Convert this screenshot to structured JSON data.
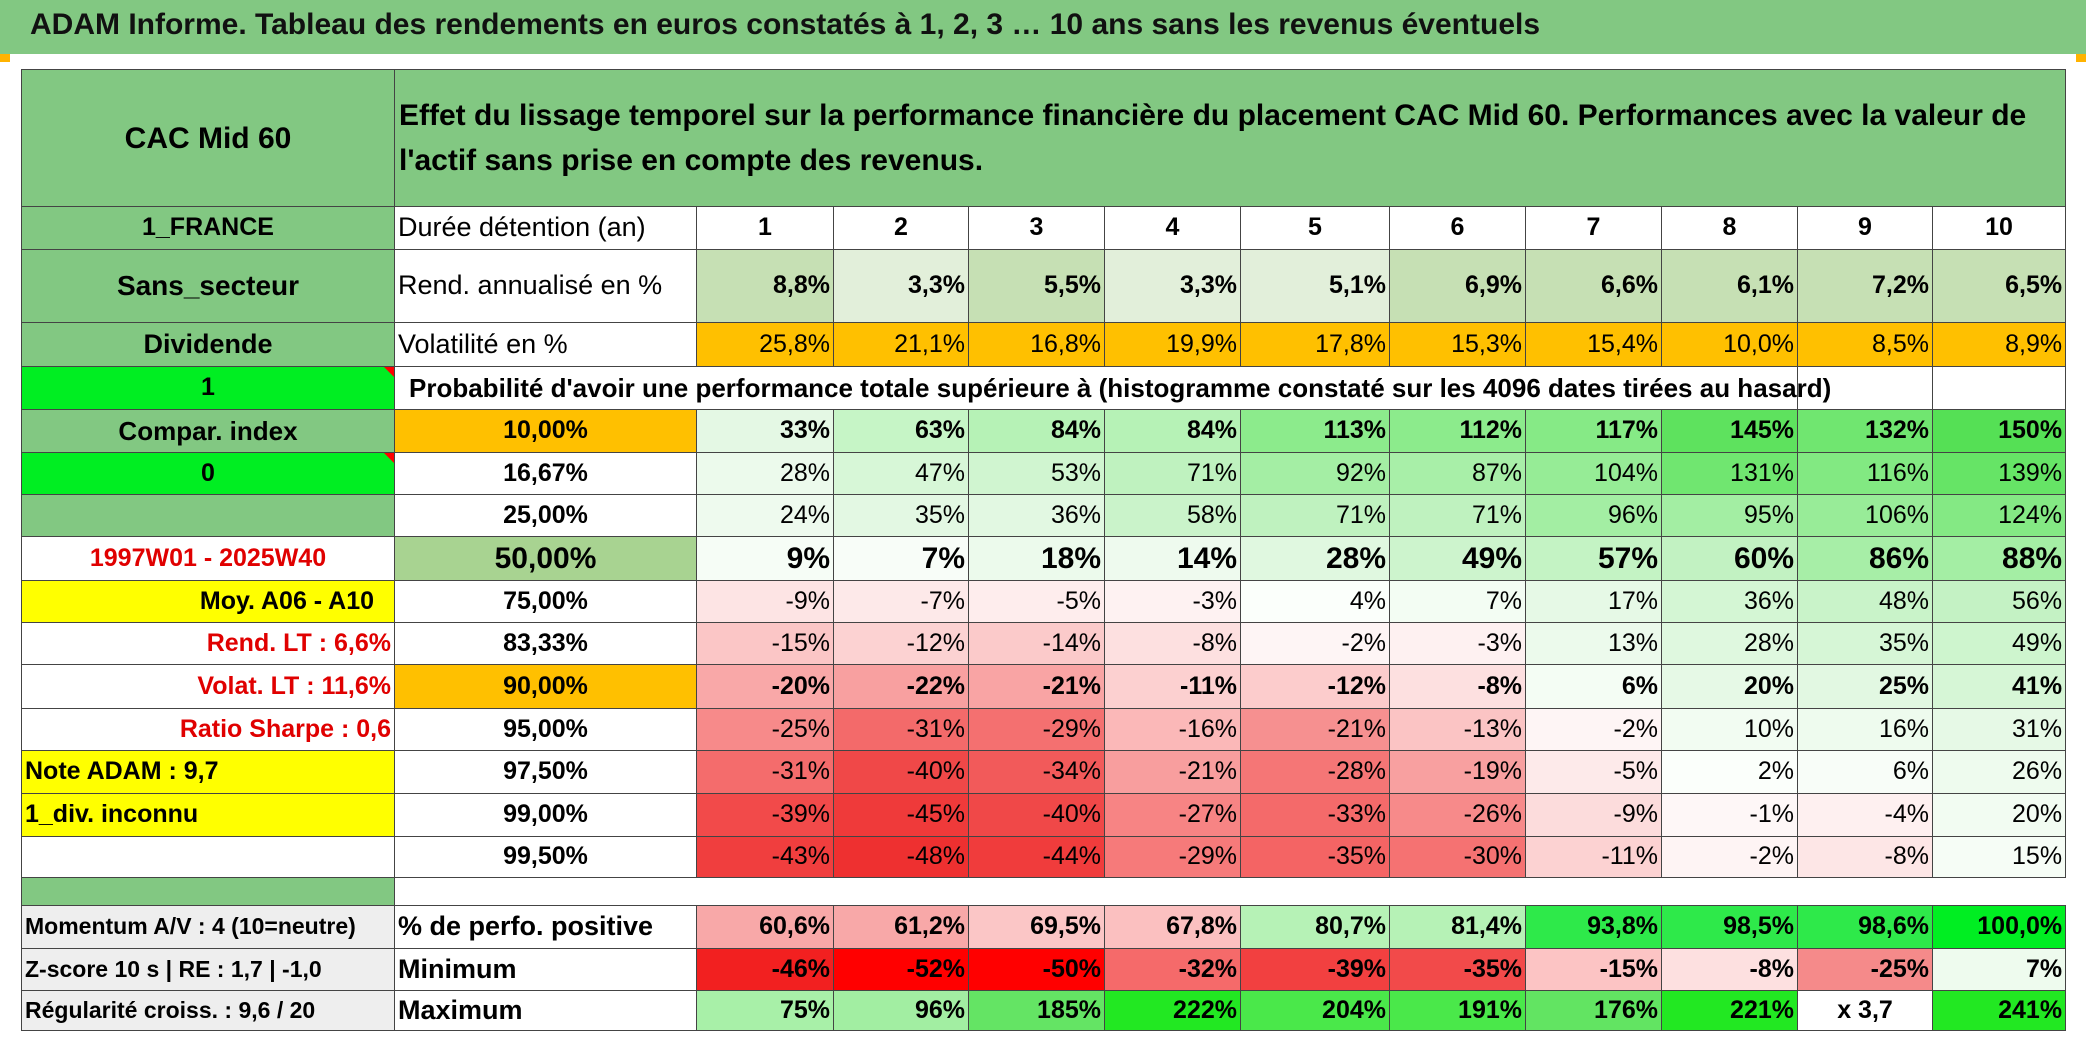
{
  "title": "ADAM Informe. Tableau des rendements en euros constatés à 1, 2, 3 … 10 ans sans les revenus éventuels",
  "header": {
    "asset": "CAC Mid 60",
    "description": "Effet du lissage temporel sur la performance financière du placement CAC Mid 60. Performances avec la valeur de l'actif sans prise en compte des revenus."
  },
  "left_panel": {
    "country": "1_FRANCE",
    "sector": "Sans_secteur",
    "dividend": "Dividende",
    "flag1": "1",
    "compar_index": "Compar. index",
    "flag0": "0",
    "period": "1997W01 - 2025W40",
    "moy": "Moy. A06 - A10",
    "rend_lt": "Rend. LT :   6,6%",
    "volat_lt": "Volat. LT :   11,6%",
    "sharpe": "Ratio Sharpe :    0,6",
    "note": "Note ADAM : 9,7",
    "div_info": "1_div. inconnu",
    "momentum": "Momentum A/V : 4 (10=neutre)",
    "zscore": "Z-score 10 s | RE : 1,7 | -1,0",
    "regularite": "Régularité croiss. : 9,6 / 20"
  },
  "durations": {
    "label": "Durée détention (an)",
    "years": [
      "1",
      "2",
      "3",
      "4",
      "5",
      "6",
      "7",
      "8",
      "9",
      "10"
    ]
  },
  "rend": {
    "label": "Rend. annualisé en %",
    "values": [
      "8,8%",
      "3,3%",
      "5,5%",
      "3,3%",
      "5,1%",
      "6,9%",
      "6,6%",
      "6,1%",
      "7,2%",
      "6,5%"
    ]
  },
  "volat": {
    "label": "Volatilité en %",
    "values": [
      "25,8%",
      "21,1%",
      "16,8%",
      "19,9%",
      "17,8%",
      "15,3%",
      "15,4%",
      "10,0%",
      "8,5%",
      "8,9%"
    ]
  },
  "prob_label": "Probabilité d'avoir une performance totale supérieure à (histogramme constaté sur les 4096 dates tirées au hasard)",
  "quantile_rows": [
    {
      "q": "10,00%",
      "values": [
        "33%",
        "63%",
        "84%",
        "84%",
        "113%",
        "112%",
        "117%",
        "145%",
        "132%",
        "150%"
      ]
    },
    {
      "q": "16,67%",
      "values": [
        "28%",
        "47%",
        "53%",
        "71%",
        "92%",
        "87%",
        "104%",
        "131%",
        "116%",
        "139%"
      ]
    },
    {
      "q": "25,00%",
      "values": [
        "24%",
        "35%",
        "36%",
        "58%",
        "71%",
        "71%",
        "96%",
        "95%",
        "106%",
        "124%"
      ]
    },
    {
      "q": "50,00%",
      "values": [
        "9%",
        "7%",
        "18%",
        "14%",
        "28%",
        "49%",
        "57%",
        "60%",
        "86%",
        "88%"
      ]
    },
    {
      "q": "75,00%",
      "values": [
        "-9%",
        "-7%",
        "-5%",
        "-3%",
        "4%",
        "7%",
        "17%",
        "36%",
        "48%",
        "56%"
      ]
    },
    {
      "q": "83,33%",
      "values": [
        "-15%",
        "-12%",
        "-14%",
        "-8%",
        "-2%",
        "-3%",
        "13%",
        "28%",
        "35%",
        "49%"
      ]
    },
    {
      "q": "90,00%",
      "values": [
        "-20%",
        "-22%",
        "-21%",
        "-11%",
        "-12%",
        "-8%",
        "6%",
        "20%",
        "25%",
        "41%"
      ]
    },
    {
      "q": "95,00%",
      "values": [
        "-25%",
        "-31%",
        "-29%",
        "-16%",
        "-21%",
        "-13%",
        "-2%",
        "10%",
        "16%",
        "31%"
      ]
    },
    {
      "q": "97,50%",
      "values": [
        "-31%",
        "-40%",
        "-34%",
        "-21%",
        "-28%",
        "-19%",
        "-5%",
        "2%",
        "6%",
        "26%"
      ]
    },
    {
      "q": "99,00%",
      "values": [
        "-39%",
        "-45%",
        "-40%",
        "-27%",
        "-33%",
        "-26%",
        "-9%",
        "-1%",
        "-4%",
        "20%"
      ]
    },
    {
      "q": "99,50%",
      "values": [
        "-43%",
        "-48%",
        "-44%",
        "-29%",
        "-35%",
        "-30%",
        "-11%",
        "-2%",
        "-8%",
        "15%"
      ]
    }
  ],
  "stats": {
    "positive": {
      "label": "% de perfo. positive",
      "values": [
        "60,6%",
        "61,2%",
        "69,5%",
        "67,8%",
        "80,7%",
        "81,4%",
        "93,8%",
        "98,5%",
        "98,6%",
        "100,0%"
      ]
    },
    "minimum": {
      "label": "Minimum",
      "values": [
        "-46%",
        "-52%",
        "-50%",
        "-32%",
        "-39%",
        "-35%",
        "-15%",
        "-8%",
        "-25%",
        "7%"
      ]
    },
    "maximum": {
      "label": "Maximum",
      "values": [
        "75%",
        "96%",
        "185%",
        "222%",
        "204%",
        "191%",
        "176%",
        "221%",
        "x 3,7",
        "241%"
      ]
    }
  },
  "colors": {
    "header_green": "#82c882",
    "orange": "#ffc000",
    "bright_green": "#00ee22",
    "yellow": "#ffff00",
    "label_red": "#e00000"
  }
}
